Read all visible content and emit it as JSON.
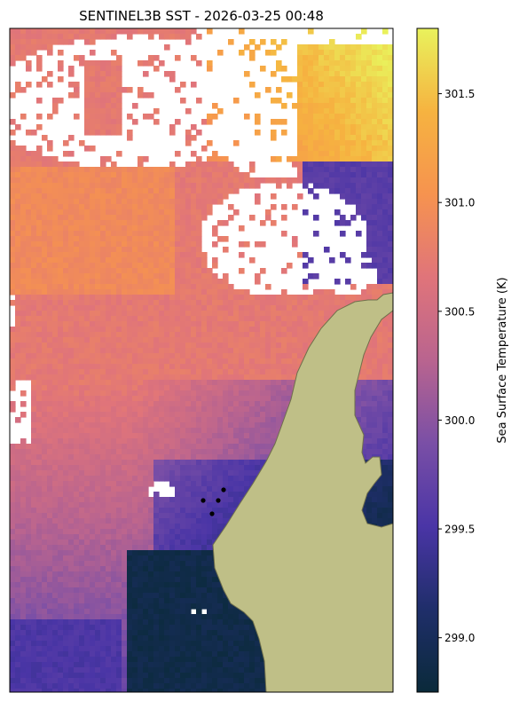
{
  "chart_data": {
    "type": "heatmap",
    "title": "SENTINEL3B SST - 2026-03-25 00:48",
    "colorbar": {
      "label": "Sea Surface Temperature (K)",
      "range": [
        298.75,
        301.8
      ],
      "ticks": [
        299.0,
        299.5,
        300.0,
        300.5,
        301.0,
        301.5
      ],
      "tick_labels": [
        "299.0",
        "299.5",
        "300.0",
        "300.5",
        "301.0",
        "301.5"
      ],
      "colormap": "thermal",
      "stops": [
        "#0a2a3a",
        "#1f2e6a",
        "#4a35a6",
        "#7a4fa6",
        "#b9648f",
        "#e0747a",
        "#f6934f",
        "#f6b340",
        "#e9f25c"
      ]
    },
    "land_color": "#bfbf87",
    "land_edge_color": "#6f6f4c",
    "missing_color": "#ffffff",
    "field_summary": [
      {
        "region": "north-east corner",
        "approx_sst_K": 301.8
      },
      {
        "region": "north-east coastal band",
        "approx_sst_K": 299.6
      },
      {
        "region": "open water west / centre",
        "approx_sst_K": 300.8
      },
      {
        "region": "south-west",
        "approx_sst_K": 300.0
      },
      {
        "region": "south coastal bay",
        "approx_sst_K": 298.9
      }
    ],
    "station_count": 4,
    "grid": false,
    "legend": "colorbar-right"
  }
}
